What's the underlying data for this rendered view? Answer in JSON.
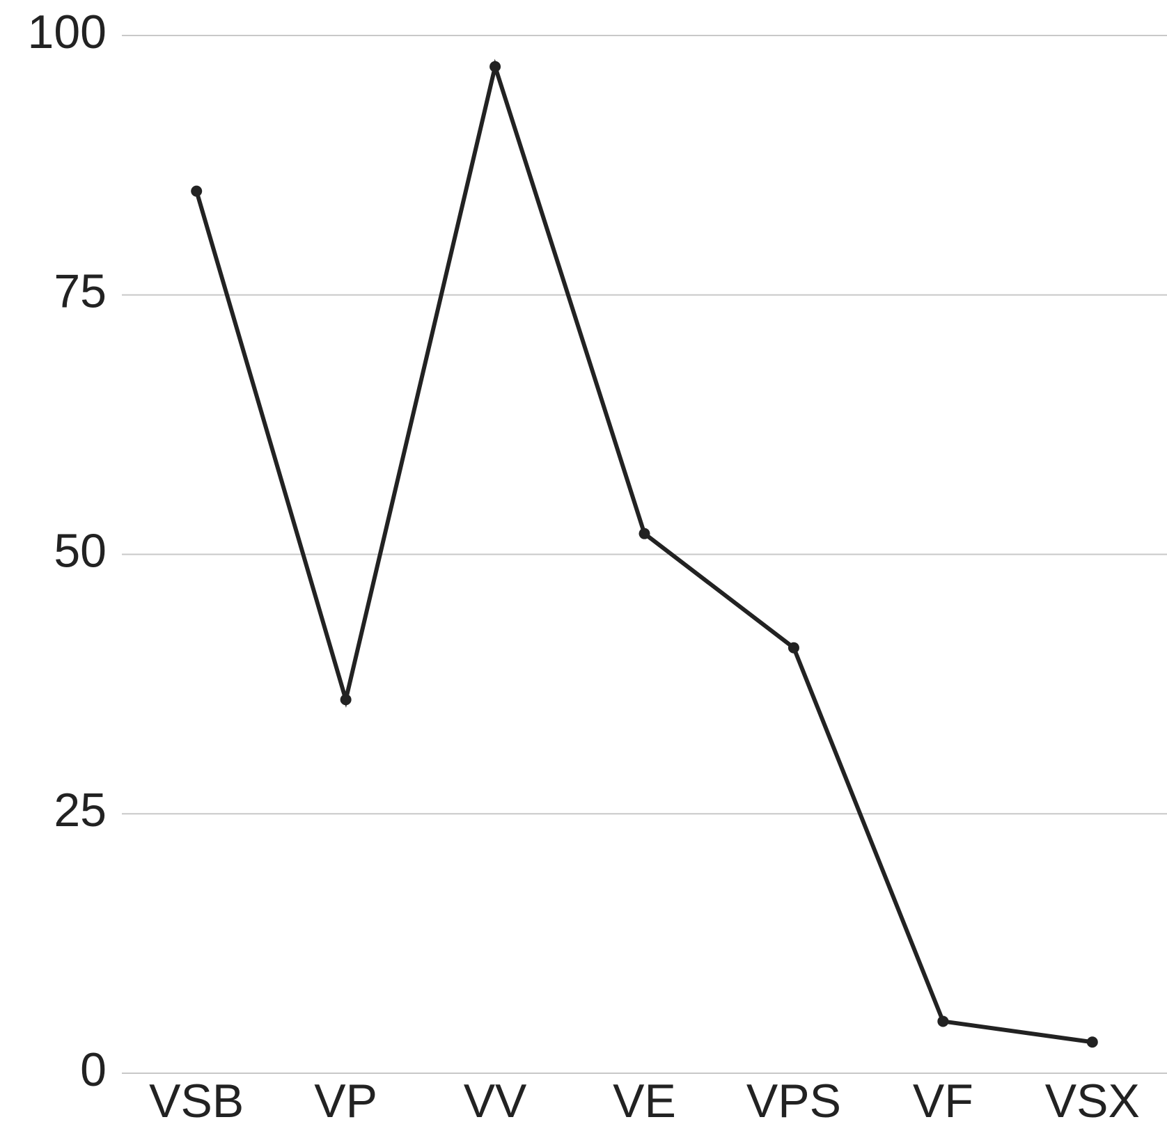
{
  "chart_data": {
    "type": "line",
    "categories": [
      "VSB",
      "VP",
      "VV",
      "VE",
      "VPS",
      "VF",
      "VSX"
    ],
    "values": [
      85,
      36,
      97,
      52,
      41,
      5,
      3
    ],
    "color": "#222222",
    "ylim": [
      0,
      100
    ],
    "yticks": [
      0,
      25,
      50,
      75,
      100
    ],
    "grid": true
  }
}
